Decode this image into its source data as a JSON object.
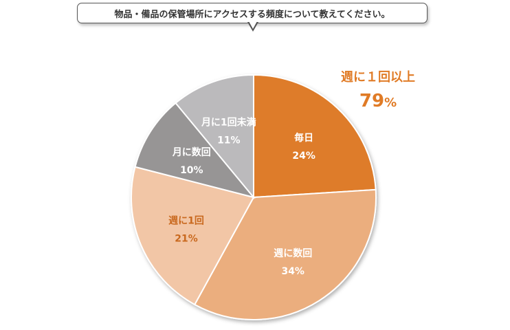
{
  "question": "物品・備品の保管場所にアクセスする頻度について教えてください。",
  "summary": {
    "label": "週に１回以上",
    "value": "79",
    "unit": "%"
  },
  "colors": {
    "daily": "#DE7C2A",
    "weekly_several": "#EBAE7E",
    "weekly_once": "#F2C6A6",
    "monthly_several": "#979595",
    "monthly_less": "#BBBABC",
    "summary": "#E07B26"
  },
  "chart_data": {
    "type": "pie",
    "title": "",
    "start_angle_deg": 0,
    "direction": "clockwise",
    "slices": [
      {
        "label": "毎日",
        "value": 24,
        "display": "24%",
        "color": "#DE7C2A",
        "text_color": "#ffffff"
      },
      {
        "label": "週に数回",
        "value": 34,
        "display": "34%",
        "color": "#EBAE7E",
        "text_color": "#ffffff"
      },
      {
        "label": "週に1回",
        "value": 21,
        "display": "21%",
        "color": "#F2C6A6",
        "text_color": "#C9691F"
      },
      {
        "label": "月に数回",
        "value": 10,
        "display": "10%",
        "color": "#979595",
        "text_color": "#ffffff"
      },
      {
        "label": "月に1回未満",
        "value": 11,
        "display": "11%",
        "color": "#BBBABC",
        "text_color": "#ffffff"
      }
    ]
  }
}
